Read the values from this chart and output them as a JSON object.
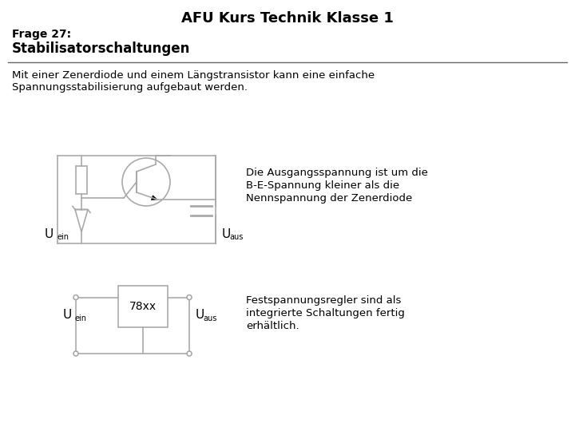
{
  "title": "AFU Kurs Technik Klasse 1",
  "frage": "Frage 27:",
  "subtitle": "Stabilisatorschaltungen",
  "description1": "Mit einer Zenerdiode und einem Längstransistor kann eine einfache",
  "description2": "Spannungsstabilisierung aufgebaut werden.",
  "circuit1_text1": "Die Ausgangsspannung ist um die",
  "circuit1_text2": "B-E-Spannung kleiner als die",
  "circuit1_text3": "Nennspannung der Zenerdiode",
  "circuit2_label": "78xx",
  "circuit2_text1": "Festspannungsregler sind als",
  "circuit2_text2": "integrierte Schaltungen fertig",
  "circuit2_text3": "erhältlich.",
  "bg_color": "#ffffff",
  "line_color": "#aaaaaa",
  "text_color": "#000000",
  "line_width": 1.2
}
